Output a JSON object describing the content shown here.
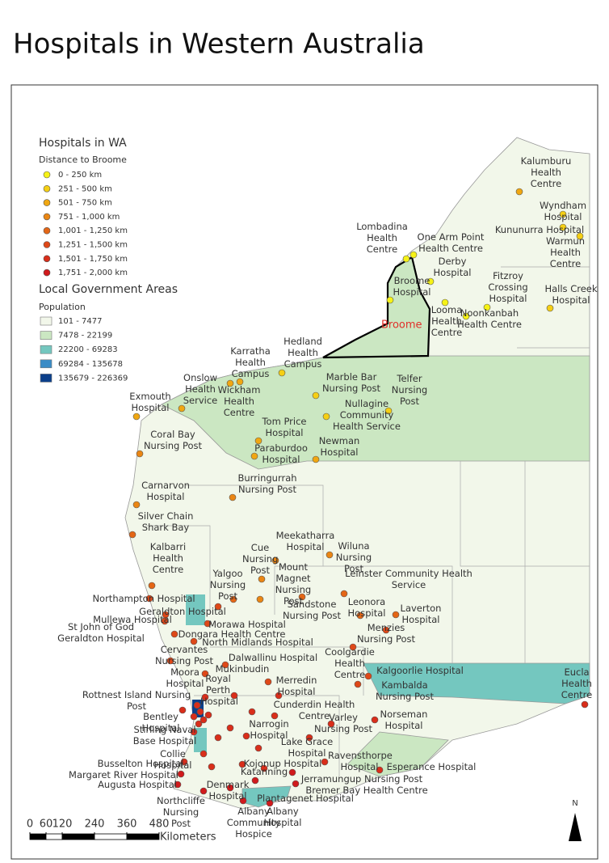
{
  "title": "Hospitals in Western Australia",
  "legend": {
    "title": "Hospitals in WA",
    "subtitle": "Distance to Broome",
    "classes": [
      {
        "label": "0 - 250 km",
        "color": "#f6f216",
        "hospitals": [
          "Broome Hospital",
          "Lombadina Health Centre",
          "One Arm Point Health Centre",
          "Derby Hospital",
          "Looma Health Centre",
          "Noonkanbah Health Centre",
          "Fitzroy Crossing Hospital"
        ]
      },
      {
        "label": "251 - 500 km",
        "color": "#f5cf14",
        "hospitals": [
          "Halls Creek Hospital",
          "Kununurra Hospital",
          "Wyndham Hospital",
          "Warmun Health Centre",
          "Hedland Health Campus",
          "Marble Bar Nursing Post",
          "Telfer Nursing Post",
          "Nullagine Community Health Service"
        ]
      },
      {
        "label": "501 - 750 km",
        "color": "#f0a712",
        "hospitals": [
          "Kalumburu Health Centre",
          "Karratha Health Campus",
          "Wickham Health Centre",
          "Onslow Health Service",
          "Tom Price Hospital",
          "Paraburdoo Hospital",
          "Newman Hospital",
          "Exmouth Hospital"
        ]
      },
      {
        "label": "751 - 1,000 km",
        "color": "#ea8614",
        "hospitals": [
          "Coral Bay Nursing Post",
          "Carnarvon Hospital",
          "Burringurrah Nursing Post",
          "Meekatharra Hospital",
          "Wiluna Nursing Post",
          "Cue Nursing Post",
          "Mount Magnet Nursing Post"
        ]
      },
      {
        "label": "1,001 - 1,250 km",
        "color": "#e46616",
        "hospitals": [
          "Silver Chain Shark Bay",
          "Kalbarri Health Centre",
          "Yalgoo Nursing Post",
          "Sandstone Nursing Post",
          "Leinster Community Health Service",
          "Leonora Hospital",
          "Laverton Hospital"
        ]
      },
      {
        "label": "1,251 - 1,500 km",
        "color": "#de4818",
        "hospitals": [
          "Northampton Hospital",
          "Geraldton Hospital",
          "Mullewa Hospital",
          "St John of God Geraldton Hospital",
          "Morawa Hospital",
          "Dongara Health Centre",
          "North Midlands Hospital",
          "Cervantes Nursing Post",
          "Moora Hospital",
          "Dalwallinu Hospital",
          "Mukinbudin",
          "Menzies Nursing Post",
          "Coolgardie Health Centre",
          "Kalgoorlie Hospital",
          "Kambalda Nursing Post"
        ]
      },
      {
        "label": "1,501 - 1,750 km",
        "color": "#d92e1a",
        "hospitals": [
          "Rottnest Island Nursing Post",
          "Royal Perth Hospital",
          "Bentley Hospital",
          "Stirling Naval Base Hospital",
          "Merredin Hospital",
          "Cunderdin Health Centre",
          "Narrogin Hospital",
          "Lake Grace Hospital",
          "Varley Nursing Post",
          "Norseman Hospital",
          "Collie Hospital",
          "Busselton Hospital",
          "Kojonup Hospital",
          "Katanning",
          "Eucla Health Centre",
          "Ravensthorpe Hospital",
          "Esperance Hospital"
        ]
      },
      {
        "label": "1,751 - 2,000 km",
        "color": "#d01a1c",
        "hospitals": [
          "Margaret River Hospital",
          "Augusta Hospital",
          "Northcliffe Nursing Post",
          "Denmark Hospital",
          "Plantagenet Hospital",
          "Albany Community Hospice",
          "Albany Hospital",
          "Bremer Bay Health Centre",
          "Jerramungup Nursing Post"
        ]
      }
    ]
  },
  "lga_legend": {
    "title": "Local Government Areas",
    "subtitle": "Population",
    "classes": [
      {
        "label": "101 - 7477",
        "color": "#f2f7ea"
      },
      {
        "label": "7478 - 22199",
        "color": "#cbe7c2"
      },
      {
        "label": "22200 - 69283",
        "color": "#74c7bf"
      },
      {
        "label": "69284 - 135678",
        "color": "#3a8cc6"
      },
      {
        "label": "135679 - 226369",
        "color": "#0b3f8a"
      }
    ]
  },
  "map_label": "Broome",
  "scale_bar": {
    "ticks": [
      0,
      60,
      120,
      240,
      360,
      480
    ],
    "unit": "Kilometers"
  },
  "north_arrow": "N"
}
